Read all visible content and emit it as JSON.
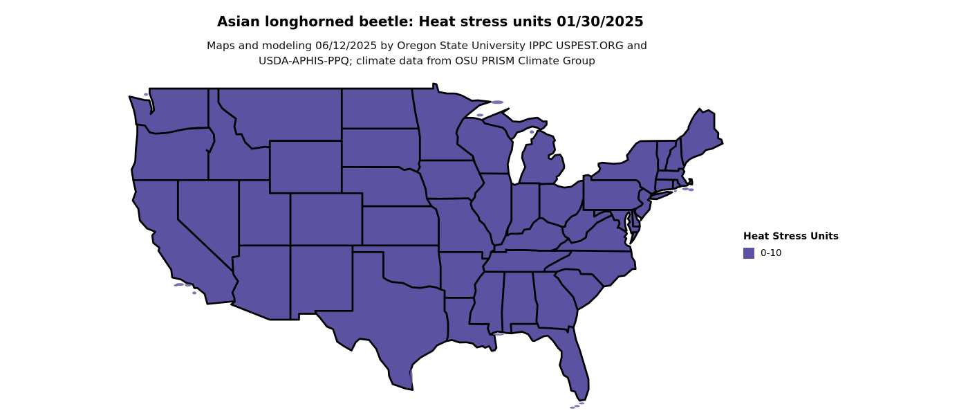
{
  "figure": {
    "title": "Asian longhorned beetle: Heat stress units 01/30/2025",
    "subtitle_line1": "Maps and modeling 06/12/2025 by Oregon State University IPPC USPEST.ORG and",
    "subtitle_line2": "USDA-APHIS-PPQ; climate data from OSU PRISM Climate Group"
  },
  "legend": {
    "title": "Heat Stress Units",
    "items": [
      {
        "label": "0-10",
        "color": "#5c52a2"
      }
    ]
  },
  "map": {
    "region": "contiguous-united-states",
    "fill": "#5c52a2",
    "stroke": "#000000",
    "background": "#ffffff",
    "stroke_width": 2.7
  },
  "chart_data": {
    "type": "heatmap",
    "subtype": "choropleth-us-states",
    "title": "Asian longhorned beetle: Heat stress units 01/30/2025",
    "unit": "Heat Stress Units",
    "classes": [
      {
        "range": "0-10",
        "color": "#5c52a2"
      }
    ],
    "note": "All contiguous US states rendered in the single 0-10 class",
    "legend_position": "right"
  }
}
